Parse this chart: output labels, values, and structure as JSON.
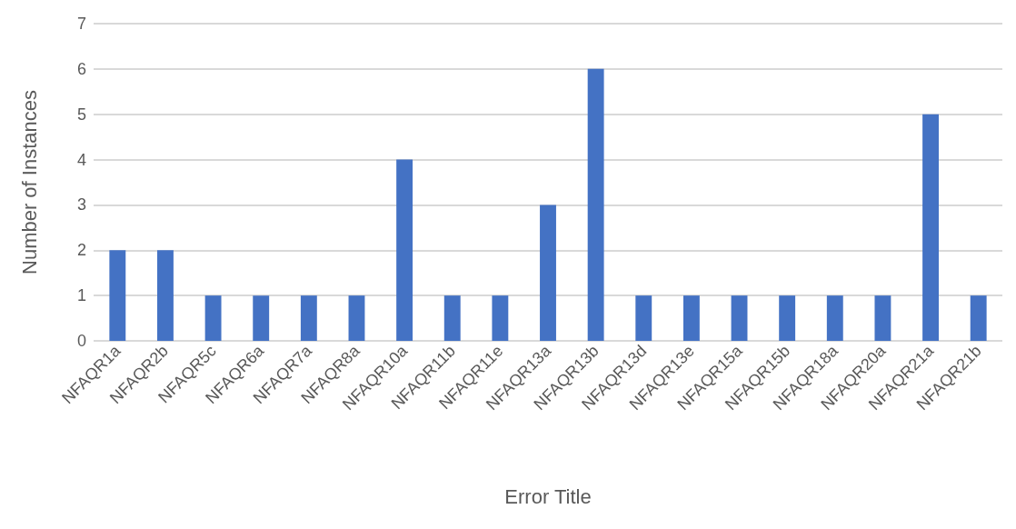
{
  "chart_data": {
    "type": "bar",
    "xlabel": "Error Title",
    "ylabel": "Number of Instances",
    "categories": [
      "NFAQR1a",
      "NFAQR2b",
      "NFAQR5c",
      "NFAQR6a",
      "NFAQR7a",
      "NFAQR8a",
      "NFAQR10a",
      "NFAQR11b",
      "NFAQR11e",
      "NFAQR13a",
      "NFAQR13b",
      "NFAQR13d",
      "NFAQR13e",
      "NFAQR15a",
      "NFAQR15b",
      "NFAQR18a",
      "NFAQR20a",
      "NFAQR21a",
      "NFAQR21b"
    ],
    "values": [
      2,
      2,
      1,
      1,
      1,
      1,
      4,
      1,
      1,
      3,
      6,
      1,
      1,
      1,
      1,
      1,
      1,
      5,
      1
    ],
    "color": "#4472c4",
    "ylim": [
      0,
      7
    ],
    "yticks": [
      0,
      1,
      2,
      3,
      4,
      5,
      6,
      7
    ],
    "grid": "y"
  }
}
